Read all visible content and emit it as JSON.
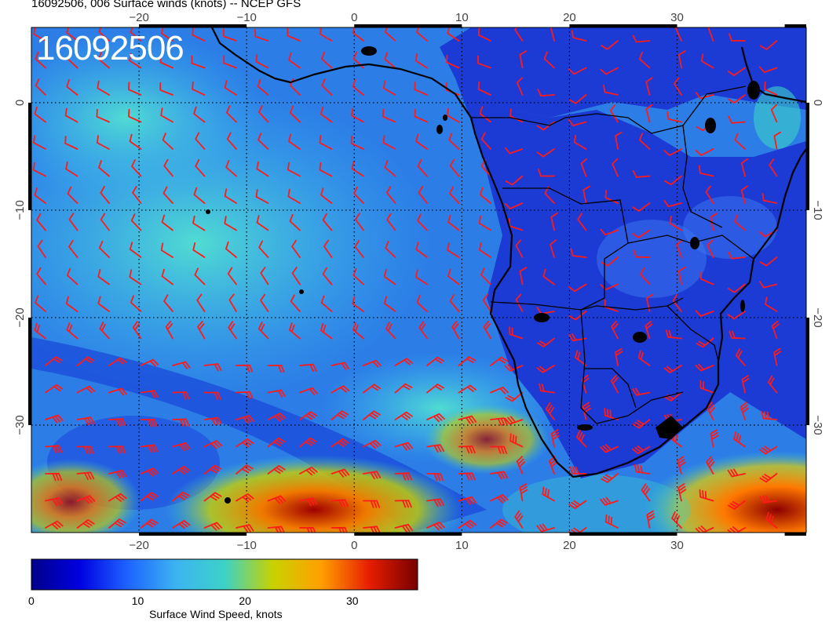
{
  "title": "16092506, 006 Surface winds (knots) -- NCEP GFS",
  "stamp": "16092506",
  "map": {
    "lon_range": [
      -30,
      42
    ],
    "lat_range": [
      -40,
      7
    ],
    "lon_ticks": [
      -20,
      -10,
      0,
      10,
      20,
      30
    ],
    "lat_ticks": [
      0,
      -10,
      -20,
      -30
    ],
    "lon_tick_labels": [
      "−20",
      "−10",
      "0",
      "10",
      "20",
      "30"
    ],
    "lat_tick_labels": [
      "0",
      "−10",
      "−20",
      "−30"
    ],
    "barb_color": "#ff1a1a",
    "coast_color": "#000000",
    "grid": "dotted"
  },
  "colorbar": {
    "label": "Surface Wind Speed, knots",
    "ticks": [
      "0",
      "10",
      "20",
      "30"
    ],
    "tick_values": [
      0,
      10,
      20,
      30
    ],
    "range": [
      0,
      36
    ],
    "colors": [
      "#00008b",
      "#0000e0",
      "#1e64ff",
      "#3cb4f0",
      "#3cd2c8",
      "#c8d200",
      "#ffa000",
      "#e61e00",
      "#780000"
    ]
  }
}
